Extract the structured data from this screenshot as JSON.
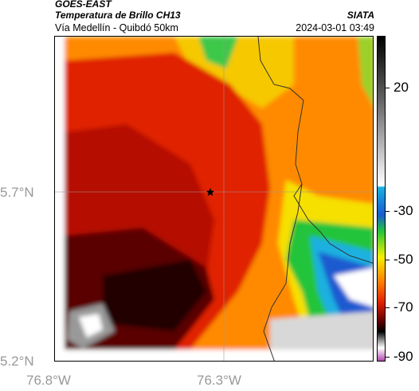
{
  "header": {
    "satellite": "GOES-EAST",
    "product": "Temperatura de Brillo CH13",
    "location": "Vía Medellín - Quibdó 50km",
    "organization": "SIATA",
    "timestamp": "2024-03-01 03:49"
  },
  "axes": {
    "y_ticks": [
      "5.7°N",
      "5.2°N"
    ],
    "x_ticks": [
      "76.8°W",
      "76.3°W"
    ]
  },
  "colorbar": {
    "labels": [
      "20",
      "-30",
      "-50",
      "-70",
      "-90"
    ],
    "colors": {
      "warm": "#222222",
      "cyan": "#1ab0e0",
      "green": "#22c43a",
      "yellow": "#f5f000",
      "orange": "#ff7a00",
      "red": "#e02000",
      "darkred": "#5a0000",
      "black": "#000000",
      "gray": "#a0a0a0",
      "purple": "#b04ab0"
    }
  },
  "map": {
    "marker_icon": "star-icon"
  }
}
